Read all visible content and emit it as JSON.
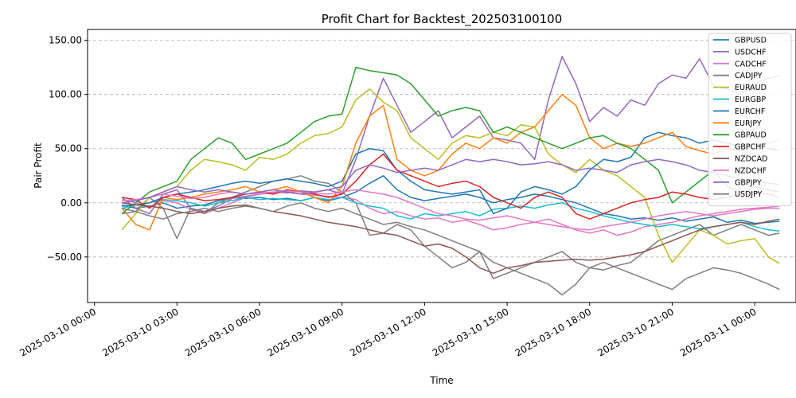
{
  "chart_data": {
    "type": "line",
    "title": "Profit Chart for Backtest_202503100100",
    "xlabel": "Time",
    "ylabel": "Pair Profit",
    "x_unit": "hours since 2025-03-10 00:00",
    "x_range": [
      -0.25,
      25.5
    ],
    "ylim": [
      -92,
      160
    ],
    "x_ticks": [
      {
        "x": 0,
        "label": "2025-03-10 00:00"
      },
      {
        "x": 3,
        "label": "2025-03-10 03:00"
      },
      {
        "x": 6,
        "label": "2025-03-10 06:00"
      },
      {
        "x": 9,
        "label": "2025-03-10 09:00"
      },
      {
        "x": 12,
        "label": "2025-03-10 12:00"
      },
      {
        "x": 15,
        "label": "2025-03-10 15:00"
      },
      {
        "x": 18,
        "label": "2025-03-10 18:00"
      },
      {
        "x": 21,
        "label": "2025-03-10 21:00"
      },
      {
        "x": 24,
        "label": "2025-03-11 00:00"
      }
    ],
    "y_ticks": [
      {
        "y": 150,
        "label": "150.00"
      },
      {
        "y": 100,
        "label": "100.00"
      },
      {
        "y": 50,
        "label": "50.00"
      },
      {
        "y": 0,
        "label": "0.00"
      },
      {
        "y": -50,
        "label": "−50.00"
      }
    ],
    "grid": "horizontal dashed",
    "legend": "top-right",
    "x": [
      1.0,
      1.5,
      2.0,
      2.5,
      3.0,
      3.5,
      4.0,
      4.5,
      5.0,
      5.5,
      6.0,
      6.5,
      7.0,
      7.5,
      8.0,
      8.5,
      9.0,
      9.5,
      10.0,
      10.5,
      11.0,
      11.5,
      12.0,
      12.5,
      13.0,
      13.5,
      14.0,
      14.5,
      15.0,
      15.5,
      16.0,
      16.5,
      17.0,
      17.5,
      18.0,
      18.5,
      19.0,
      19.5,
      20.0,
      20.5,
      21.0,
      21.5,
      22.0,
      22.5,
      23.0,
      23.5,
      24.0,
      24.5,
      24.9
    ],
    "series": [
      {
        "name": "GBPUSD",
        "color": "#1f77b4",
        "values": [
          -2,
          -5,
          -3,
          0,
          -5,
          -3,
          -2,
          2,
          5,
          4,
          5,
          3,
          4,
          2,
          5,
          2,
          5,
          10,
          18,
          25,
          12,
          5,
          2,
          4,
          6,
          8,
          5,
          0,
          3,
          5,
          8,
          6,
          3,
          0,
          -5,
          -10,
          -12,
          -15,
          -14,
          -16,
          -14,
          -17,
          -15,
          -13,
          -18,
          -16,
          -19,
          -18,
          -17
        ]
      },
      {
        "name": "USDCHF",
        "color": "#9467bd",
        "values": [
          5,
          -5,
          -10,
          8,
          12,
          -5,
          -8,
          -3,
          4,
          6,
          8,
          10,
          9,
          11,
          10,
          12,
          8,
          40,
          80,
          115,
          90,
          65,
          75,
          85,
          60,
          70,
          80,
          60,
          58,
          55,
          40,
          95,
          135,
          110,
          75,
          88,
          80,
          95,
          90,
          110,
          118,
          115,
          133,
          108,
          105,
          100,
          110,
          115,
          117
        ]
      },
      {
        "name": "CADCHF",
        "color": "#e377c2",
        "values": [
          3,
          0,
          -4,
          2,
          0,
          -6,
          -10,
          -5,
          0,
          5,
          8,
          9,
          10,
          8,
          7,
          6,
          5,
          3,
          -5,
          -10,
          -8,
          -12,
          -15,
          -14,
          -18,
          -16,
          -20,
          -25,
          -23,
          -20,
          -18,
          -15,
          -20,
          -25,
          -28,
          -25,
          -30,
          -27,
          -22,
          -20,
          -18,
          -15,
          -12,
          -10,
          -8,
          -6,
          -5,
          -4,
          -3
        ]
      },
      {
        "name": "CADJPY",
        "color": "#7f7f7f",
        "values": [
          -5,
          -8,
          5,
          -5,
          -33,
          -5,
          -10,
          0,
          5,
          10,
          15,
          20,
          22,
          25,
          20,
          18,
          10,
          0,
          -30,
          -28,
          -20,
          -25,
          -40,
          -50,
          -60,
          -55,
          -45,
          -70,
          -65,
          -60,
          -55,
          -50,
          -45,
          -55,
          -60,
          -62,
          -58,
          -55,
          -45,
          -35,
          -30,
          -25,
          -20,
          -30,
          -25,
          -20,
          -25,
          -30,
          -28
        ]
      },
      {
        "name": "EURAUD",
        "color": "#bcbd22",
        "values": [
          -25,
          -10,
          5,
          10,
          15,
          30,
          40,
          38,
          35,
          30,
          42,
          40,
          45,
          55,
          62,
          64,
          70,
          95,
          105,
          93,
          85,
          60,
          50,
          40,
          55,
          62,
          60,
          65,
          62,
          72,
          70,
          45,
          35,
          28,
          40,
          30,
          25,
          15,
          5,
          -30,
          -55,
          -40,
          -25,
          -30,
          -38,
          -35,
          -33,
          -50,
          -56
        ]
      },
      {
        "name": "EURGBP",
        "color": "#17becf",
        "values": [
          -5,
          -2,
          0,
          3,
          2,
          0,
          -3,
          0,
          2,
          5,
          3,
          4,
          3,
          2,
          5,
          3,
          5,
          0,
          -3,
          -5,
          -12,
          -15,
          -10,
          -12,
          -10,
          -8,
          -12,
          -6,
          -5,
          -3,
          -5,
          -2,
          0,
          -5,
          -8,
          -12,
          -15,
          -18,
          -20,
          -22,
          -20,
          -22,
          -24,
          -22,
          -20,
          -18,
          -22,
          -25,
          -26
        ]
      },
      {
        "name": "EURCHF",
        "color": "#1f77b4",
        "values": [
          -3,
          -2,
          0,
          5,
          8,
          10,
          12,
          15,
          18,
          20,
          18,
          20,
          22,
          20,
          18,
          15,
          20,
          45,
          50,
          48,
          30,
          20,
          12,
          10,
          8,
          10,
          12,
          -10,
          -5,
          10,
          15,
          12,
          8,
          15,
          30,
          40,
          38,
          42,
          60,
          65,
          62,
          60,
          55,
          58,
          55,
          52,
          55,
          50,
          48
        ]
      },
      {
        "name": "EURJPY",
        "color": "#ff7f0e",
        "values": [
          -5,
          -20,
          -25,
          5,
          3,
          5,
          8,
          10,
          12,
          15,
          10,
          12,
          15,
          10,
          5,
          0,
          15,
          55,
          80,
          90,
          40,
          30,
          25,
          30,
          45,
          55,
          50,
          60,
          55,
          65,
          70,
          85,
          100,
          90,
          60,
          50,
          55,
          52,
          55,
          60,
          65,
          52,
          48,
          45,
          50,
          48,
          52,
          55,
          58
        ]
      },
      {
        "name": "GBPAUD",
        "color": "#2ca02c",
        "values": [
          -10,
          0,
          10,
          15,
          20,
          40,
          50,
          60,
          55,
          40,
          45,
          50,
          55,
          65,
          75,
          80,
          82,
          125,
          122,
          120,
          118,
          110,
          95,
          80,
          85,
          88,
          85,
          65,
          70,
          65,
          60,
          55,
          50,
          55,
          60,
          62,
          55,
          50,
          40,
          30,
          0,
          10,
          20,
          30,
          15,
          10,
          15,
          12,
          10
        ]
      },
      {
        "name": "GBPCHF",
        "color": "#d62728",
        "values": [
          5,
          3,
          -5,
          5,
          8,
          5,
          2,
          3,
          5,
          8,
          10,
          8,
          12,
          10,
          8,
          5,
          8,
          20,
          35,
          45,
          30,
          25,
          20,
          15,
          18,
          20,
          15,
          5,
          0,
          -5,
          5,
          10,
          5,
          -10,
          -15,
          -10,
          -5,
          0,
          3,
          5,
          10,
          8,
          5,
          3,
          5,
          8,
          10,
          8,
          5
        ]
      },
      {
        "name": "NZDCAD",
        "color": "#8c564b",
        "values": [
          0,
          -2,
          -3,
          -5,
          -8,
          -10,
          -8,
          -5,
          -3,
          -2,
          -5,
          -8,
          -10,
          -12,
          -15,
          -18,
          -20,
          -22,
          -25,
          -28,
          -30,
          -35,
          -40,
          -38,
          -42,
          -50,
          -60,
          -65,
          -60,
          -58,
          -55,
          -54,
          -53,
          -52,
          -53,
          -52,
          -50,
          -48,
          -45,
          -40,
          -35,
          -30,
          -25,
          -22,
          -20,
          -18,
          -20,
          -17,
          -15
        ]
      },
      {
        "name": "NZDCHF",
        "color": "#e377c2",
        "values": [
          2,
          3,
          5,
          8,
          6,
          4,
          5,
          8,
          10,
          8,
          9,
          10,
          11,
          10,
          9,
          8,
          10,
          12,
          10,
          8,
          5,
          0,
          -5,
          -10,
          -12,
          -15,
          -16,
          -14,
          -12,
          -15,
          -18,
          -20,
          -22,
          -24,
          -25,
          -22,
          -20,
          -18,
          -15,
          -12,
          -10,
          -8,
          -10,
          -12,
          -10,
          -8,
          -6,
          -5,
          -5
        ]
      },
      {
        "name": "GBPJPY",
        "color": "#9467bd",
        "values": [
          0,
          2,
          5,
          10,
          15,
          12,
          10,
          12,
          10,
          8,
          10,
          12,
          10,
          8,
          10,
          12,
          15,
          30,
          35,
          32,
          28,
          30,
          32,
          30,
          35,
          40,
          38,
          40,
          38,
          35,
          36,
          38,
          35,
          30,
          32,
          30,
          28,
          35,
          38,
          40,
          38,
          35,
          30,
          28,
          25,
          22,
          20,
          18,
          17
        ]
      },
      {
        "name": "USDJPY",
        "color": "#7f7f7f",
        "values": [
          -10,
          -8,
          -12,
          -15,
          -10,
          -8,
          -5,
          -8,
          -5,
          -3,
          -5,
          -8,
          -3,
          0,
          -5,
          -8,
          -5,
          -10,
          -15,
          -20,
          -18,
          -22,
          -25,
          -30,
          -35,
          -40,
          -45,
          -55,
          -60,
          -65,
          -70,
          -75,
          -85,
          -75,
          -60,
          -55,
          -60,
          -65,
          -70,
          -75,
          -80,
          -70,
          -65,
          -60,
          -62,
          -65,
          -70,
          -75,
          -80
        ]
      }
    ]
  }
}
